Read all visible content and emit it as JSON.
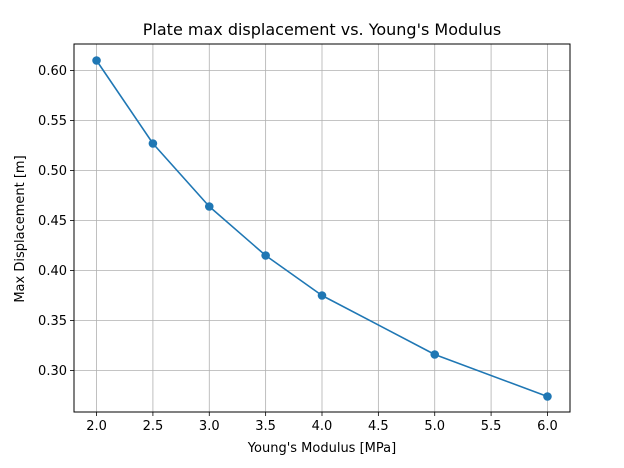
{
  "chart_data": {
    "type": "line",
    "title": "Plate max displacement vs. Young's Modulus",
    "xlabel": "Young's Modulus [MPa]",
    "ylabel": "Max Displacement [m]",
    "xlim": [
      1.8,
      6.2
    ],
    "ylim": [
      0.2585,
      0.6265
    ],
    "x_ticks": [
      "2.0",
      "2.5",
      "3.0",
      "3.5",
      "4.0",
      "4.5",
      "5.0",
      "5.5",
      "6.0"
    ],
    "y_ticks": [
      "0.30",
      "0.35",
      "0.40",
      "0.45",
      "0.50",
      "0.55",
      "0.60"
    ],
    "grid": true,
    "series": [
      {
        "color": "#1f77b4",
        "marker": "circle",
        "x": [
          2.0,
          2.5,
          3.0,
          3.5,
          4.0,
          5.0,
          6.0
        ],
        "y": [
          0.61,
          0.527,
          0.464,
          0.415,
          0.375,
          0.316,
          0.274
        ]
      }
    ]
  }
}
